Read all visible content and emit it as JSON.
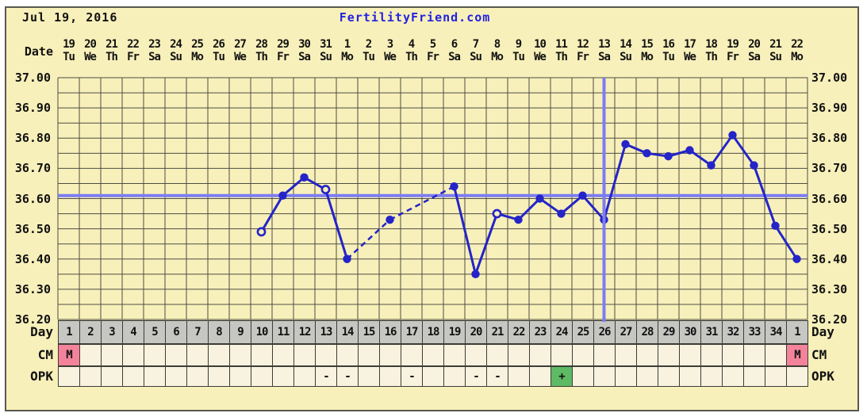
{
  "header": {
    "date": "Jul 19, 2016",
    "brand": "FertilityFriend.com"
  },
  "colors": {
    "panel_bg": "#f8f0ba",
    "grid_line": "#4d4d44",
    "data_blue": "#2424c8",
    "helper_blue": "#7d7df2",
    "brand_blue": "#2222e0",
    "day_row_bg": "#c6c6c2",
    "cell_bg": "#f9f2df",
    "cm_pink": "#f2839b",
    "opk_green": "#5eba64",
    "border": "#58584e",
    "text": "#111111"
  },
  "date_row": {
    "label": "Date",
    "columns": [
      {
        "d": "19",
        "w": "Tu"
      },
      {
        "d": "20",
        "w": "We"
      },
      {
        "d": "21",
        "w": "Th"
      },
      {
        "d": "22",
        "w": "Fr"
      },
      {
        "d": "23",
        "w": "Sa"
      },
      {
        "d": "24",
        "w": "Su"
      },
      {
        "d": "25",
        "w": "Mo"
      },
      {
        "d": "26",
        "w": "Tu"
      },
      {
        "d": "27",
        "w": "We"
      },
      {
        "d": "28",
        "w": "Th"
      },
      {
        "d": "29",
        "w": "Fr"
      },
      {
        "d": "30",
        "w": "Sa"
      },
      {
        "d": "31",
        "w": "Su"
      },
      {
        "d": "1",
        "w": "Mo"
      },
      {
        "d": "2",
        "w": "Tu"
      },
      {
        "d": "3",
        "w": "We"
      },
      {
        "d": "4",
        "w": "Th"
      },
      {
        "d": "5",
        "w": "Fr"
      },
      {
        "d": "6",
        "w": "Sa"
      },
      {
        "d": "7",
        "w": "Su"
      },
      {
        "d": "8",
        "w": "Mo"
      },
      {
        "d": "9",
        "w": "Tu"
      },
      {
        "d": "10",
        "w": "We"
      },
      {
        "d": "11",
        "w": "Th"
      },
      {
        "d": "12",
        "w": "Fr"
      },
      {
        "d": "13",
        "w": "Sa"
      },
      {
        "d": "14",
        "w": "Su"
      },
      {
        "d": "15",
        "w": "Mo"
      },
      {
        "d": "16",
        "w": "Tu"
      },
      {
        "d": "17",
        "w": "We"
      },
      {
        "d": "18",
        "w": "Th"
      },
      {
        "d": "19",
        "w": "Fr"
      },
      {
        "d": "20",
        "w": "Sa"
      },
      {
        "d": "21",
        "w": "Su"
      },
      {
        "d": "22",
        "w": "Mo"
      }
    ]
  },
  "y_axis": {
    "ticks": [
      "37.00",
      "36.90",
      "36.80",
      "36.70",
      "36.60",
      "36.50",
      "36.40",
      "36.30",
      "36.20"
    ]
  },
  "chart_data": {
    "type": "line",
    "title": "FertilityFriend.com basal body temperature chart",
    "ylim": [
      36.2,
      37.0
    ],
    "yticks": [
      37.0,
      36.9,
      36.8,
      36.7,
      36.6,
      36.5,
      36.4,
      36.3,
      36.2
    ],
    "x_days": 35,
    "coverline": 36.61,
    "vertical_line_day": 26,
    "open_circle_days": [
      10,
      13,
      21
    ],
    "points": [
      {
        "day": 10,
        "temp": 36.49,
        "open": true
      },
      {
        "day": 11,
        "temp": 36.61,
        "open": false
      },
      {
        "day": 12,
        "temp": 36.67,
        "open": false
      },
      {
        "day": 13,
        "temp": 36.63,
        "open": true
      },
      {
        "day": 14,
        "temp": 36.4,
        "open": false
      },
      {
        "day": 16,
        "temp": 36.53,
        "open": false
      },
      {
        "day": 19,
        "temp": 36.64,
        "open": false
      },
      {
        "day": 20,
        "temp": 36.35,
        "open": false
      },
      {
        "day": 21,
        "temp": 36.55,
        "open": true
      },
      {
        "day": 22,
        "temp": 36.53,
        "open": false
      },
      {
        "day": 23,
        "temp": 36.6,
        "open": false
      },
      {
        "day": 24,
        "temp": 36.55,
        "open": false
      },
      {
        "day": 25,
        "temp": 36.61,
        "open": false
      },
      {
        "day": 26,
        "temp": 36.53,
        "open": false
      },
      {
        "day": 27,
        "temp": 36.78,
        "open": false
      },
      {
        "day": 28,
        "temp": 36.75,
        "open": false
      },
      {
        "day": 29,
        "temp": 36.74,
        "open": false
      },
      {
        "day": 30,
        "temp": 36.76,
        "open": false
      },
      {
        "day": 31,
        "temp": 36.71,
        "open": false
      },
      {
        "day": 32,
        "temp": 36.81,
        "open": false
      },
      {
        "day": 33,
        "temp": 36.71,
        "open": false
      },
      {
        "day": 34,
        "temp": 36.51,
        "open": false
      },
      {
        "day": 35,
        "temp": 36.4,
        "open": false
      }
    ],
    "gap_segments_dashed": [
      [
        14,
        16
      ],
      [
        16,
        19
      ]
    ]
  },
  "day_row": {
    "label": "Day",
    "values": [
      "1",
      "2",
      "3",
      "4",
      "5",
      "6",
      "7",
      "8",
      "9",
      "10",
      "11",
      "12",
      "13",
      "14",
      "15",
      "16",
      "17",
      "18",
      "19",
      "20",
      "21",
      "22",
      "23",
      "24",
      "25",
      "26",
      "27",
      "28",
      "29",
      "30",
      "31",
      "32",
      "33",
      "34",
      "1"
    ]
  },
  "cm_row": {
    "label": "CM",
    "marks": [
      {
        "col": 1,
        "value": "M"
      },
      {
        "col": 35,
        "value": "M"
      }
    ]
  },
  "opk_row": {
    "label": "OPK",
    "marks": [
      {
        "col": 13,
        "value": "-"
      },
      {
        "col": 14,
        "value": "-"
      },
      {
        "col": 17,
        "value": "-"
      },
      {
        "col": 20,
        "value": "-"
      },
      {
        "col": 21,
        "value": "-"
      },
      {
        "col": 24,
        "value": "+"
      }
    ]
  }
}
